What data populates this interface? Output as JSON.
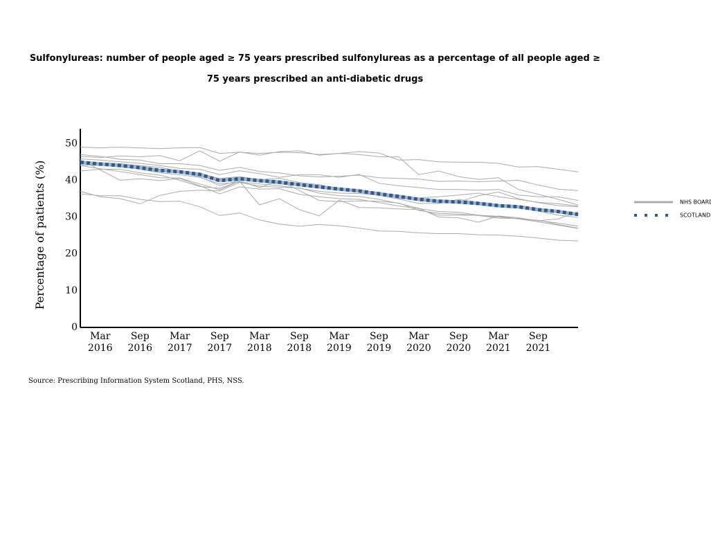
{
  "chart_data": {
    "type": "line",
    "title": "Sulfonylureas: number of people aged ≥ 75 years prescribed sulfonylureas as a percentage of all people aged ≥ 75 years prescribed an anti-diabetic drugs",
    "y_label": "Percentage of patients (%)",
    "source": "Source: Prescribing Information System Scotland, PHS, NSS.",
    "categories": [
      null,
      "Mar 2016",
      null,
      "Sep 2016",
      null,
      "Mar 2017",
      null,
      "Sep 2017",
      null,
      "Mar 2018",
      null,
      "Sep 2018",
      null,
      "Mar 2019",
      null,
      "Sep 2019",
      null,
      "Mar 2020",
      null,
      "Sep 2020",
      null,
      "Mar 2021",
      null,
      "Sep 2021",
      null,
      null
    ],
    "ylim": [
      0,
      54
    ],
    "yticks": [
      0,
      10,
      20,
      30,
      40,
      50
    ],
    "grid": false,
    "legend": "right",
    "series": [
      {
        "name": "NHS BOARD",
        "color": "#aaaaaa",
        "lines": [
          [
            49,
            48.8,
            49,
            48.8,
            48.6,
            48.8,
            48.9,
            47.3,
            47.6,
            47.3,
            47.6,
            47.5,
            47.0,
            47.3,
            47.8,
            47.4,
            45.5,
            45.6,
            45.0,
            44.9,
            44.9,
            44.6,
            43.6,
            43.7,
            43.0,
            42.3
          ],
          [
            46.5,
            46.2,
            46.6,
            46.4,
            46.7,
            45.3,
            48.0,
            45.2,
            47.7,
            46.8,
            47.8,
            48.0,
            46.8,
            47.3,
            47.0,
            46.4,
            46.3,
            41.5,
            42.5,
            41.0,
            40.2,
            40.7,
            37.5,
            36.2,
            34.8,
            33.3
          ],
          [
            45.5,
            42.8,
            40.0,
            40.4,
            39.9,
            40.5,
            38.5,
            36.3,
            38.2,
            37.6,
            37.7,
            36.2,
            35.5,
            35.0,
            34.8,
            33.9,
            33.0,
            32.3,
            31.5,
            31.3,
            30.5,
            30.0,
            29.6,
            29.0,
            28.4,
            27.5
          ],
          [
            37.0,
            35.5,
            35.0,
            33.6,
            35.9,
            37.0,
            37.3,
            37.1,
            39.4,
            38.4,
            38.1,
            37.9,
            36.5,
            35.8,
            35.6,
            34.8,
            33.7,
            32.4,
            30.0,
            29.8,
            28.6,
            30.3,
            29.8,
            29.0,
            29.5,
            31.5
          ],
          [
            36.3,
            35.8,
            35.8,
            34.8,
            34.2,
            34.3,
            32.8,
            30.4,
            31.1,
            29.2,
            28.1,
            27.5,
            28.0,
            27.6,
            27.0,
            26.2,
            26.1,
            25.7,
            25.5,
            25.5,
            25.2,
            25.1,
            24.8,
            24.3,
            23.7,
            23.5
          ],
          [
            44.0,
            43.1,
            42.4,
            41.5,
            40.7,
            40.6,
            39.0,
            37.4,
            39.8,
            38.0,
            39.9,
            37.2,
            34.5,
            34.2,
            34.4,
            34.3,
            33.8,
            31.8,
            31.0,
            30.8,
            30.4,
            29.7,
            29.6,
            29.1,
            28.0,
            27.0
          ],
          [
            42.5,
            43.0,
            43.0,
            42.0,
            41.4,
            40.0,
            38.3,
            37.8,
            39.7,
            33.3,
            35.0,
            32.0,
            30.3,
            34.6,
            32.6,
            32.5,
            32.2,
            32.0,
            30.5,
            30.5,
            30.5,
            30.2,
            29.5,
            28.7,
            27.8,
            26.9
          ],
          [
            47.0,
            46.5,
            45.7,
            45.5,
            44.5,
            44.5,
            44.0,
            42.7,
            43.5,
            42.4,
            42.0,
            41.2,
            40.9,
            41.1,
            41.4,
            40.7,
            40.5,
            40.3,
            39.7,
            39.8,
            39.6,
            39.8,
            40.0,
            38.7,
            37.6,
            37.2
          ],
          [
            45.8,
            45.5,
            45.0,
            44.6,
            44.0,
            43.2,
            43.0,
            41.5,
            42.6,
            41.8,
            40.8,
            41.5,
            41.5,
            40.8,
            41.6,
            39.2,
            38.5,
            38.0,
            37.5,
            37.5,
            37.3,
            37.5,
            36.0,
            35.5,
            35.5,
            34.5
          ],
          [
            44.2,
            44.0,
            44.0,
            43.0,
            42.0,
            41.5,
            40.8,
            39.0,
            39.5,
            39.0,
            38.5,
            37.8,
            37.0,
            36.5,
            36.4,
            35.9,
            34.9,
            33.7,
            33.7,
            34.8,
            34.0,
            33.0,
            32.5,
            31.6,
            30.5,
            29.9
          ],
          [
            45.0,
            44.8,
            44.5,
            44.0,
            43.5,
            42.5,
            41.8,
            40.5,
            41.0,
            40.2,
            40.5,
            39.4,
            38.8,
            37.6,
            37.2,
            36.5,
            35.8,
            35.0,
            33.8,
            34.1,
            35.8,
            36.8,
            35.0,
            33.9,
            33.1,
            32.8
          ],
          [
            44.8,
            44.2,
            43.7,
            43.5,
            43.0,
            42.0,
            41.0,
            38.5,
            40.0,
            39.5,
            39.0,
            38.5,
            38.0,
            37.5,
            37.0,
            36.8,
            35.0,
            35.2,
            35.5,
            36.0,
            36.5,
            35.5,
            34.8,
            34.0,
            33.6,
            33.0
          ]
        ]
      },
      {
        "name": "SCOTLAND",
        "color": "#2f5a8e",
        "values": [
          44.9,
          44.4,
          44.0,
          43.4,
          42.7,
          42.3,
          41.6,
          39.9,
          40.4,
          39.9,
          39.5,
          38.8,
          38.2,
          37.6,
          37.1,
          36.3,
          35.6,
          34.8,
          34.3,
          34.1,
          33.7,
          33.1,
          32.8,
          32.0,
          31.5,
          30.7
        ]
      }
    ]
  }
}
